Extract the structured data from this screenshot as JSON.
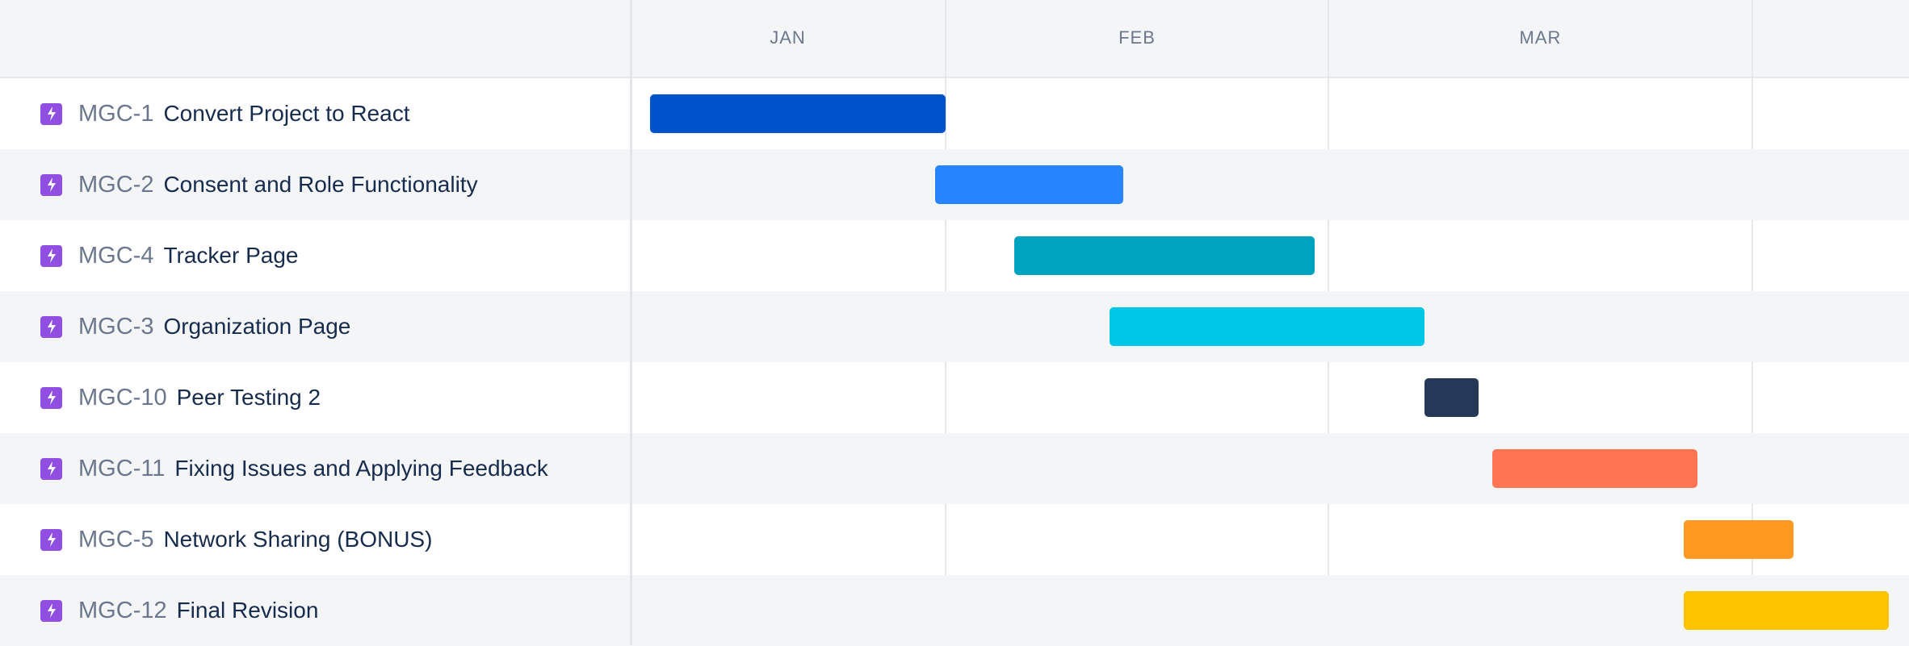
{
  "timeline": {
    "months": [
      {
        "label": "JAN",
        "start": "2021-01-01",
        "end": "2021-02-01"
      },
      {
        "label": "FEB",
        "start": "2021-02-01",
        "end": "2021-03-01"
      },
      {
        "label": "MAR",
        "start": "2021-03-01",
        "end": "2021-04-01"
      }
    ],
    "partial_month_start": "2021-04-01"
  },
  "issues": [
    {
      "key": "MGC-1",
      "title": "Convert Project to React",
      "icon": "epic-lightning-icon",
      "color": "#0052cc",
      "start": "2021-01-03",
      "end": "2021-02-01"
    },
    {
      "key": "MGC-2",
      "title": "Consent and Role Functionality",
      "icon": "epic-lightning-icon",
      "color": "#2684ff",
      "start": "2021-01-31",
      "end": "2021-02-14"
    },
    {
      "key": "MGC-4",
      "title": "Tracker Page",
      "icon": "epic-lightning-icon",
      "color": "#00a3bf",
      "start": "2021-02-06",
      "end": "2021-02-28"
    },
    {
      "key": "MGC-3",
      "title": "Organization Page",
      "icon": "epic-lightning-icon",
      "color": "#00c7e6",
      "start": "2021-02-13",
      "end": "2021-03-08"
    },
    {
      "key": "MGC-10",
      "title": "Peer Testing 2",
      "icon": "epic-lightning-icon",
      "color": "#253858",
      "start": "2021-03-08",
      "end": "2021-03-12"
    },
    {
      "key": "MGC-11",
      "title": "Fixing Issues and Applying Feedback",
      "icon": "epic-lightning-icon",
      "color": "#ff7452",
      "start": "2021-03-13",
      "end": "2021-03-28"
    },
    {
      "key": "MGC-5",
      "title": "Network Sharing (BONUS)",
      "icon": "epic-lightning-icon",
      "color": "#ff991f",
      "start": "2021-03-27",
      "end": "2021-04-04"
    },
    {
      "key": "MGC-12",
      "title": "Final Revision",
      "icon": "epic-lightning-icon",
      "color": "#ffc400",
      "start": "2021-03-27",
      "end": "2021-04-11"
    }
  ]
}
